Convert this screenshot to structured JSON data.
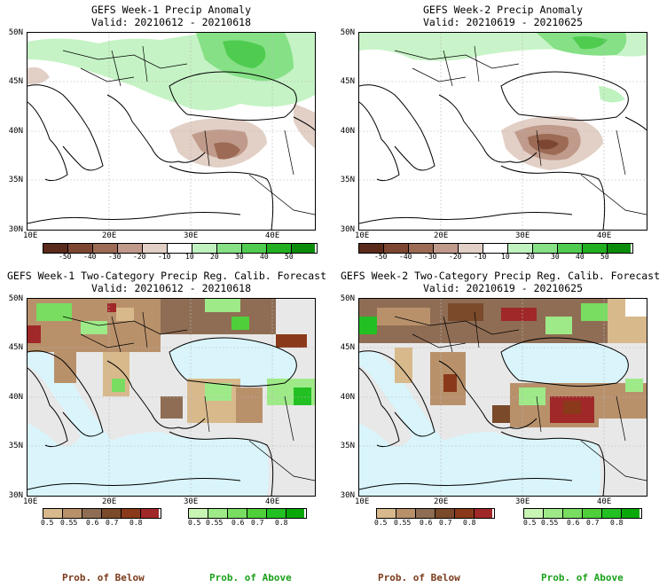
{
  "panels": [
    {
      "title": "GEFS Week-1 Precip Anomaly",
      "valid": "Valid: 20210612 - 20210618"
    },
    {
      "title": "GEFS Week-2 Precip Anomaly",
      "valid": "Valid: 20210619 - 20210625"
    },
    {
      "title": "GEFS Week-1 Two-Category Precip Reg. Calib. Forecast",
      "valid": "Valid: 20210612 - 20210618"
    },
    {
      "title": "GEFS Week-2 Two-Category Precip Reg. Calib. Forecast",
      "valid": "Valid: 20210619 - 20210625"
    }
  ],
  "lat_labels": [
    "50N",
    "45N",
    "40N",
    "35N",
    "30N"
  ],
  "lon_labels": [
    "10E",
    "20E",
    "30E",
    "40E"
  ],
  "anomaly_colorbar": {
    "labels": [
      "-50",
      "-40",
      "-30",
      "-20",
      "-10",
      "10",
      "20",
      "30",
      "40",
      "50"
    ],
    "colors": [
      "#5a2a1a",
      "#7d4632",
      "#9c6a55",
      "#c09a8a",
      "#e2cfc6",
      "#ffffff",
      "#bff2bf",
      "#86e086",
      "#4fcc4f",
      "#22b022",
      "#0a8c0a"
    ]
  },
  "prob_below": {
    "labels": [
      "0.5",
      "0.55",
      "0.6",
      "0.7",
      "0.8"
    ],
    "colors": [
      "#d8b98c",
      "#b8916b",
      "#8f6d54",
      "#7a4a2a",
      "#8a3a1a",
      "#a02828"
    ],
    "legend": "Prob. of Below",
    "legend_color": "#7a3a1a"
  },
  "prob_above": {
    "labels": [
      "0.5",
      "0.55",
      "0.6",
      "0.7",
      "0.8"
    ],
    "colors": [
      "#c8f5b4",
      "#9eea88",
      "#78dd60",
      "#4fcf3a",
      "#22c022",
      "#08a808"
    ],
    "legend": "Prob. of Above",
    "legend_color": "#1aa01a"
  }
}
